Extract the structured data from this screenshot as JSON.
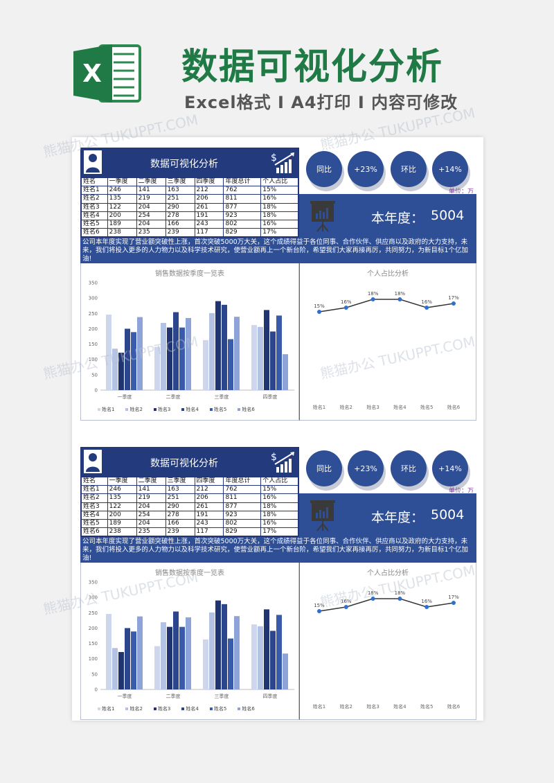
{
  "header": {
    "title": "数据可视化分析",
    "subtitle": "Excel格式 I A4打印 I 内容可修改",
    "logo_letter": "X"
  },
  "watermark": "熊猫办公 TUKUPPT.COM",
  "panel": {
    "title": "数据可视化分析",
    "columns": [
      "姓名",
      "一季度",
      "二季度",
      "三季度",
      "四季度",
      "年度总计",
      "个人占比"
    ],
    "rows": [
      [
        "姓名1",
        "246",
        "141",
        "163",
        "212",
        "762",
        "15%"
      ],
      [
        "姓名2",
        "135",
        "219",
        "251",
        "206",
        "811",
        "16%"
      ],
      [
        "姓名3",
        "122",
        "204",
        "290",
        "261",
        "877",
        "18%"
      ],
      [
        "姓名4",
        "200",
        "254",
        "278",
        "191",
        "923",
        "18%"
      ],
      [
        "姓名5",
        "189",
        "204",
        "166",
        "243",
        "802",
        "16%"
      ],
      [
        "姓名6",
        "238",
        "235",
        "239",
        "117",
        "829",
        "17%"
      ]
    ],
    "pills": [
      "同比",
      "+23%",
      "环比",
      "+14%"
    ],
    "unit": "单位：万",
    "year_label": "本年度：",
    "year_value": "5004",
    "description": "公司本年度实现了营业额突破性上涨，首次突破5000万大关，这个成绩得益于各位同事、合作伙伴、供应商以及政府的大力支持，未来，我们将投入更多的人力物力以及科学技术研究，使营业额再上一个新台阶，希望我们大家再接再厉，共同努力，为新目标1个亿加油!"
  },
  "chart_data": [
    {
      "type": "bar",
      "title": "销售数据按季度一览表",
      "categories": [
        "一季度",
        "二季度",
        "三季度",
        "四季度"
      ],
      "series": [
        {
          "name": "姓名1",
          "values": [
            246,
            141,
            163,
            212
          ],
          "color": "#cdd6ec"
        },
        {
          "name": "姓名2",
          "values": [
            135,
            219,
            251,
            206
          ],
          "color": "#b4c2e4"
        },
        {
          "name": "姓名3",
          "values": [
            122,
            204,
            290,
            261
          ],
          "color": "#1f3470"
        },
        {
          "name": "姓名4",
          "values": [
            200,
            254,
            278,
            191
          ],
          "color": "#2c468e"
        },
        {
          "name": "姓名5",
          "values": [
            189,
            204,
            166,
            243
          ],
          "color": "#3a5aac"
        },
        {
          "name": "姓名6",
          "values": [
            238,
            235,
            239,
            117
          ],
          "color": "#8ea4d8"
        }
      ],
      "yticks": [
        0,
        50,
        100,
        150,
        200,
        250,
        300,
        350
      ],
      "ylim": [
        0,
        350
      ],
      "legend": "bottom"
    },
    {
      "type": "line",
      "title": "个人占比分析",
      "categories": [
        "姓名1",
        "姓名2",
        "姓名3",
        "姓名4",
        "姓名5",
        "姓名6"
      ],
      "values": [
        15,
        16,
        18,
        18,
        16,
        17
      ],
      "labels": [
        "15%",
        "16%",
        "18%",
        "18%",
        "16%",
        "17%"
      ],
      "line_color": "#333333",
      "marker_color": "#2f6fd0"
    }
  ]
}
